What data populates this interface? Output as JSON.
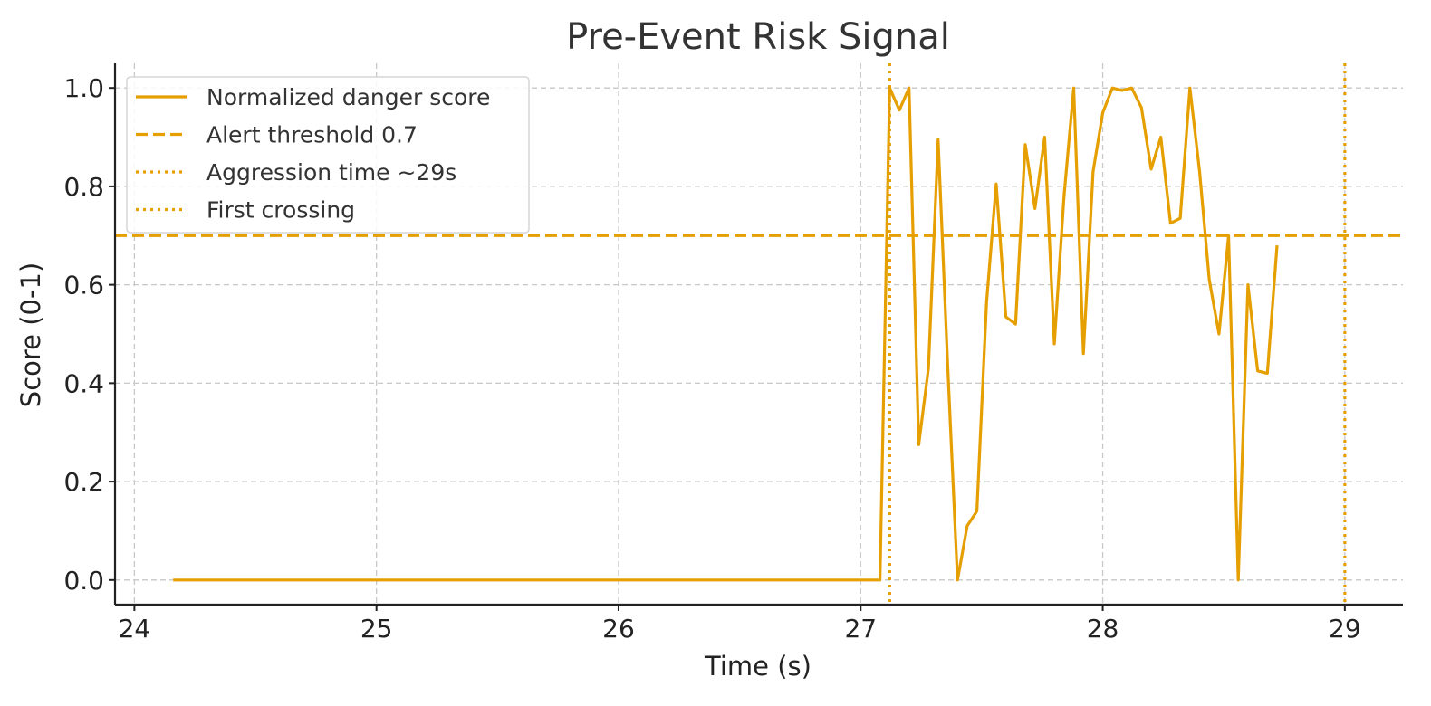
{
  "chart_data": {
    "type": "line",
    "title": "Pre-Event Risk Signal",
    "xlabel": "Time (s)",
    "ylabel": "Score (0-1)",
    "xlim": [
      23.92,
      29.24
    ],
    "ylim": [
      -0.05,
      1.05
    ],
    "x_ticks": [
      24,
      25,
      26,
      27,
      28,
      29
    ],
    "x_tick_labels": [
      "24",
      "25",
      "26",
      "27",
      "28",
      "29"
    ],
    "y_ticks": [
      0.0,
      0.2,
      0.4,
      0.6,
      0.8,
      1.0
    ],
    "y_tick_labels": [
      "0.0",
      "0.2",
      "0.4",
      "0.6",
      "0.8",
      "1.0"
    ],
    "grid": true,
    "color": "#E69F00",
    "legend_position": "top-left",
    "legend": [
      {
        "label": "Normalized danger score",
        "style": "solid"
      },
      {
        "label": "Alert threshold 0.7",
        "style": "dashed"
      },
      {
        "label": "Aggression time ~29s",
        "style": "dotted"
      },
      {
        "label": "First crossing",
        "style": "dotted"
      }
    ],
    "threshold": 0.7,
    "vlines": [
      {
        "name": "first-crossing",
        "x": 27.12
      },
      {
        "name": "aggression-time",
        "x": 29.0
      }
    ],
    "series": [
      {
        "name": "Normalized danger score",
        "x": [
          24.16,
          27.08,
          27.12,
          27.16,
          27.2,
          27.24,
          27.28,
          27.32,
          27.36,
          27.4,
          27.44,
          27.48,
          27.52,
          27.56,
          27.6,
          27.64,
          27.68,
          27.72,
          27.76,
          27.8,
          27.84,
          27.88,
          27.92,
          27.96,
          28.0,
          28.04,
          28.08,
          28.12,
          28.16,
          28.2,
          28.24,
          28.28,
          28.32,
          28.36,
          28.4,
          28.44,
          28.48,
          28.52,
          28.56,
          28.6,
          28.64,
          28.68,
          28.72
        ],
        "y": [
          0.0,
          0.0,
          1.0,
          0.955,
          1.0,
          0.275,
          0.43,
          0.895,
          0.43,
          0.0,
          0.11,
          0.14,
          0.565,
          0.805,
          0.535,
          0.52,
          0.885,
          0.755,
          0.9,
          0.48,
          0.78,
          1.0,
          0.46,
          0.83,
          0.95,
          1.0,
          0.995,
          1.0,
          0.96,
          0.835,
          0.9,
          0.725,
          0.735,
          1.0,
          0.83,
          0.61,
          0.5,
          0.7,
          0.0,
          0.6,
          0.425,
          0.42,
          0.68
        ]
      }
    ]
  }
}
